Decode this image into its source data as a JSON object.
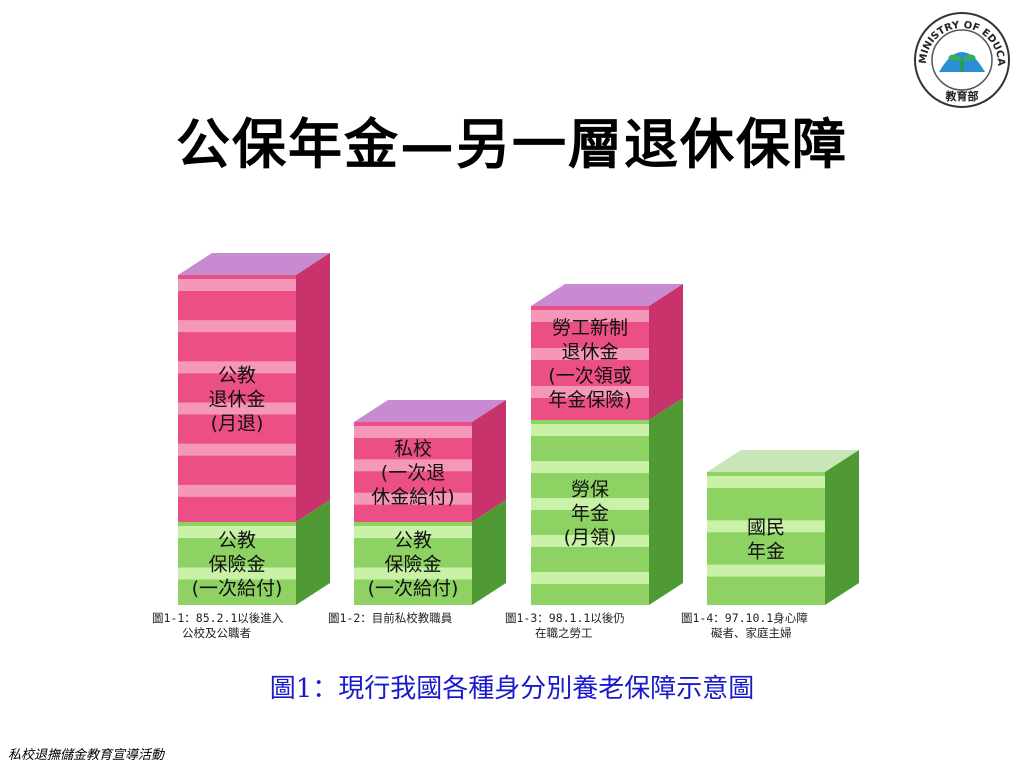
{
  "slide": {
    "title": "公保年金—另一層退休保障",
    "caption": "圖1：現行我國各種身分別養老保障示意圖",
    "footer": "私校退撫儲金教育宣導活動",
    "logo_text": "MINISTRY OF EDUCATION",
    "logo_cn": "教育部"
  },
  "colors": {
    "pink_front": "#ec4f86",
    "pink_light": "#f7a3c1",
    "pink_side": "#c8336b",
    "pink_top": "#c88ad0",
    "green_front": "#8fd264",
    "green_light": "#d4f7b3",
    "green_side": "#4f9a35",
    "green_top": "#c8e6b8",
    "caption": "#1a1acc"
  },
  "columns": [
    {
      "upper_lines": [
        "公教",
        "退休金",
        "(月退)"
      ],
      "lower_lines": [
        "公教",
        "保險金",
        "(一次給付)"
      ],
      "note_lines": [
        "圖1-1：85.2.1以後進入",
        "公校及公職者"
      ]
    },
    {
      "upper_lines": [
        "私校",
        "(一次退",
        "休金給付)"
      ],
      "lower_lines": [
        "公教",
        "保險金",
        "(一次給付)"
      ],
      "note_lines": [
        "圖1-2：目前私校教職員"
      ]
    },
    {
      "upper_lines": [
        "勞工新制",
        "退休金",
        "(一次領或",
        "年金保險)"
      ],
      "lower_lines": [
        "勞保",
        "年金",
        "(月領)"
      ],
      "note_lines": [
        "圖1-3：98.1.1以後仍",
        "在職之勞工"
      ]
    },
    {
      "upper_lines": [],
      "lower_lines": [
        "國民",
        "年金"
      ],
      "note_lines": [
        "圖1-4：97.10.1身心障",
        "礙者、家庭主婦"
      ]
    }
  ]
}
